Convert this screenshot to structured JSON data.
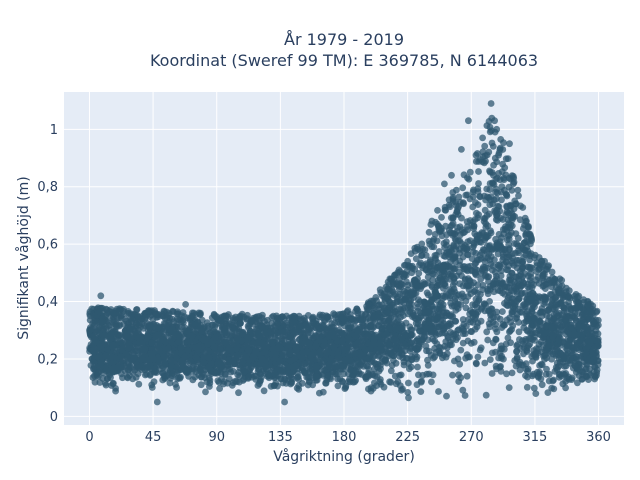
{
  "chart_data": {
    "type": "scatter",
    "title_line1": "År 1979 - 2019",
    "title_line2": "Koordinat (Sweref 99 TM): E 369785, N 6144063",
    "xlabel": "Vågriktning (grader)",
    "ylabel": "Signifikant våghöjd (m)",
    "xlim": [
      -18,
      378
    ],
    "ylim": [
      -0.03,
      1.13
    ],
    "x_ticks": [
      0,
      45,
      90,
      135,
      180,
      225,
      270,
      315,
      360
    ],
    "x_tick_labels": [
      "0",
      "45",
      "90",
      "135",
      "180",
      "225",
      "270",
      "315",
      "360"
    ],
    "y_ticks": [
      0,
      0.2,
      0.4,
      0.6,
      0.8,
      1
    ],
    "y_tick_labels": [
      "0",
      "0,2",
      "0,4",
      "0,6",
      "0,8",
      "1"
    ],
    "grid": true,
    "colors": {
      "background": "#e5ecf6",
      "grid": "#ffffff",
      "marker": "#2f5870",
      "text": "#2a3f5f"
    },
    "envelope": {
      "x": [
        0,
        45,
        90,
        135,
        180,
        200,
        225,
        250,
        270,
        285,
        300,
        315,
        340,
        360
      ],
      "y_max": [
        0.38,
        0.37,
        0.36,
        0.35,
        0.36,
        0.42,
        0.55,
        0.75,
        0.88,
        1.07,
        0.85,
        0.58,
        0.44,
        0.38
      ],
      "y_min": [
        0.08,
        0.08,
        0.08,
        0.08,
        0.08,
        0.07,
        0.06,
        0.05,
        0.04,
        0.03,
        0.04,
        0.06,
        0.07,
        0.08
      ]
    },
    "outliers": [
      {
        "x": 284,
        "y": 1.09
      },
      {
        "x": 268,
        "y": 1.03
      },
      {
        "x": 288,
        "y": 1.0
      },
      {
        "x": 278,
        "y": 0.97
      },
      {
        "x": 263,
        "y": 0.93
      },
      {
        "x": 297,
        "y": 0.95
      },
      {
        "x": 256,
        "y": 0.84
      },
      {
        "x": 251,
        "y": 0.81
      },
      {
        "x": 300,
        "y": 0.83
      },
      {
        "x": 8,
        "y": 0.42
      },
      {
        "x": 68,
        "y": 0.39
      },
      {
        "x": 48,
        "y": 0.05
      },
      {
        "x": 138,
        "y": 0.05
      }
    ]
  }
}
